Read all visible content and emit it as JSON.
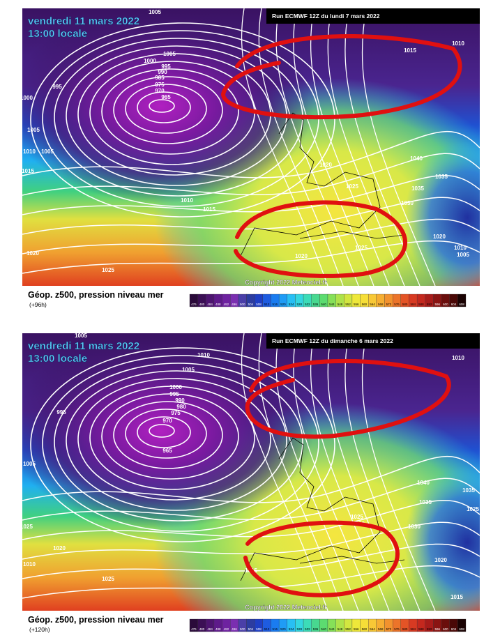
{
  "panels": [
    {
      "title": "vendredi 11 mars 2022",
      "subtitle": "13:00 locale",
      "run": "Run ECMWF 12Z du lundi 7 mars 2022",
      "copyright": "Copyright 2022 Meteociel.fr",
      "caption": "Géop. z500, pression niveau mer",
      "lead": "(+96h)",
      "isobar_labels": [
        "1005",
        "1005",
        "1000",
        "995",
        "990",
        "985",
        "975",
        "970",
        "965",
        "995",
        "1000",
        "1005",
        "1010",
        "1005",
        "1015",
        "1010",
        "1015",
        "1020",
        "1025",
        "1020",
        "1025",
        "1020",
        "1025",
        "1015",
        "1010",
        "1040",
        "1035",
        "1030",
        "1020",
        "1010",
        "1005",
        "1035"
      ]
    },
    {
      "title": "vendredi 11 mars 2022",
      "subtitle": "13:00 locale",
      "run": "Run ECMWF 12Z du dimanche 6 mars 2022",
      "copyright": "Copyright 2022 Meteociel.fr",
      "caption": "Géop. z500, pression niveau mer",
      "lead": "(+120h)",
      "isobar_labels": [
        "1005",
        "1010",
        "1005",
        "1000",
        "995",
        "990",
        "980",
        "975",
        "970",
        "965",
        "995",
        "1005",
        "1025",
        "1020",
        "1010",
        "1025",
        "1015",
        "1025",
        "1020",
        "1040",
        "1035",
        "1030",
        "1020",
        "1015",
        "1010",
        "1035",
        "1025"
      ]
    }
  ],
  "legend_labels": [
    "476",
    "480",
    "484",
    "488",
    "492",
    "496",
    "500",
    "504",
    "508",
    "512",
    "516",
    "520",
    "524",
    "528",
    "532",
    "536",
    "540",
    "544",
    "548",
    "552",
    "556",
    "560",
    "564",
    "568",
    "572",
    "576",
    "580",
    "584",
    "588",
    "592",
    "596",
    "600",
    "604",
    "608"
  ]
}
